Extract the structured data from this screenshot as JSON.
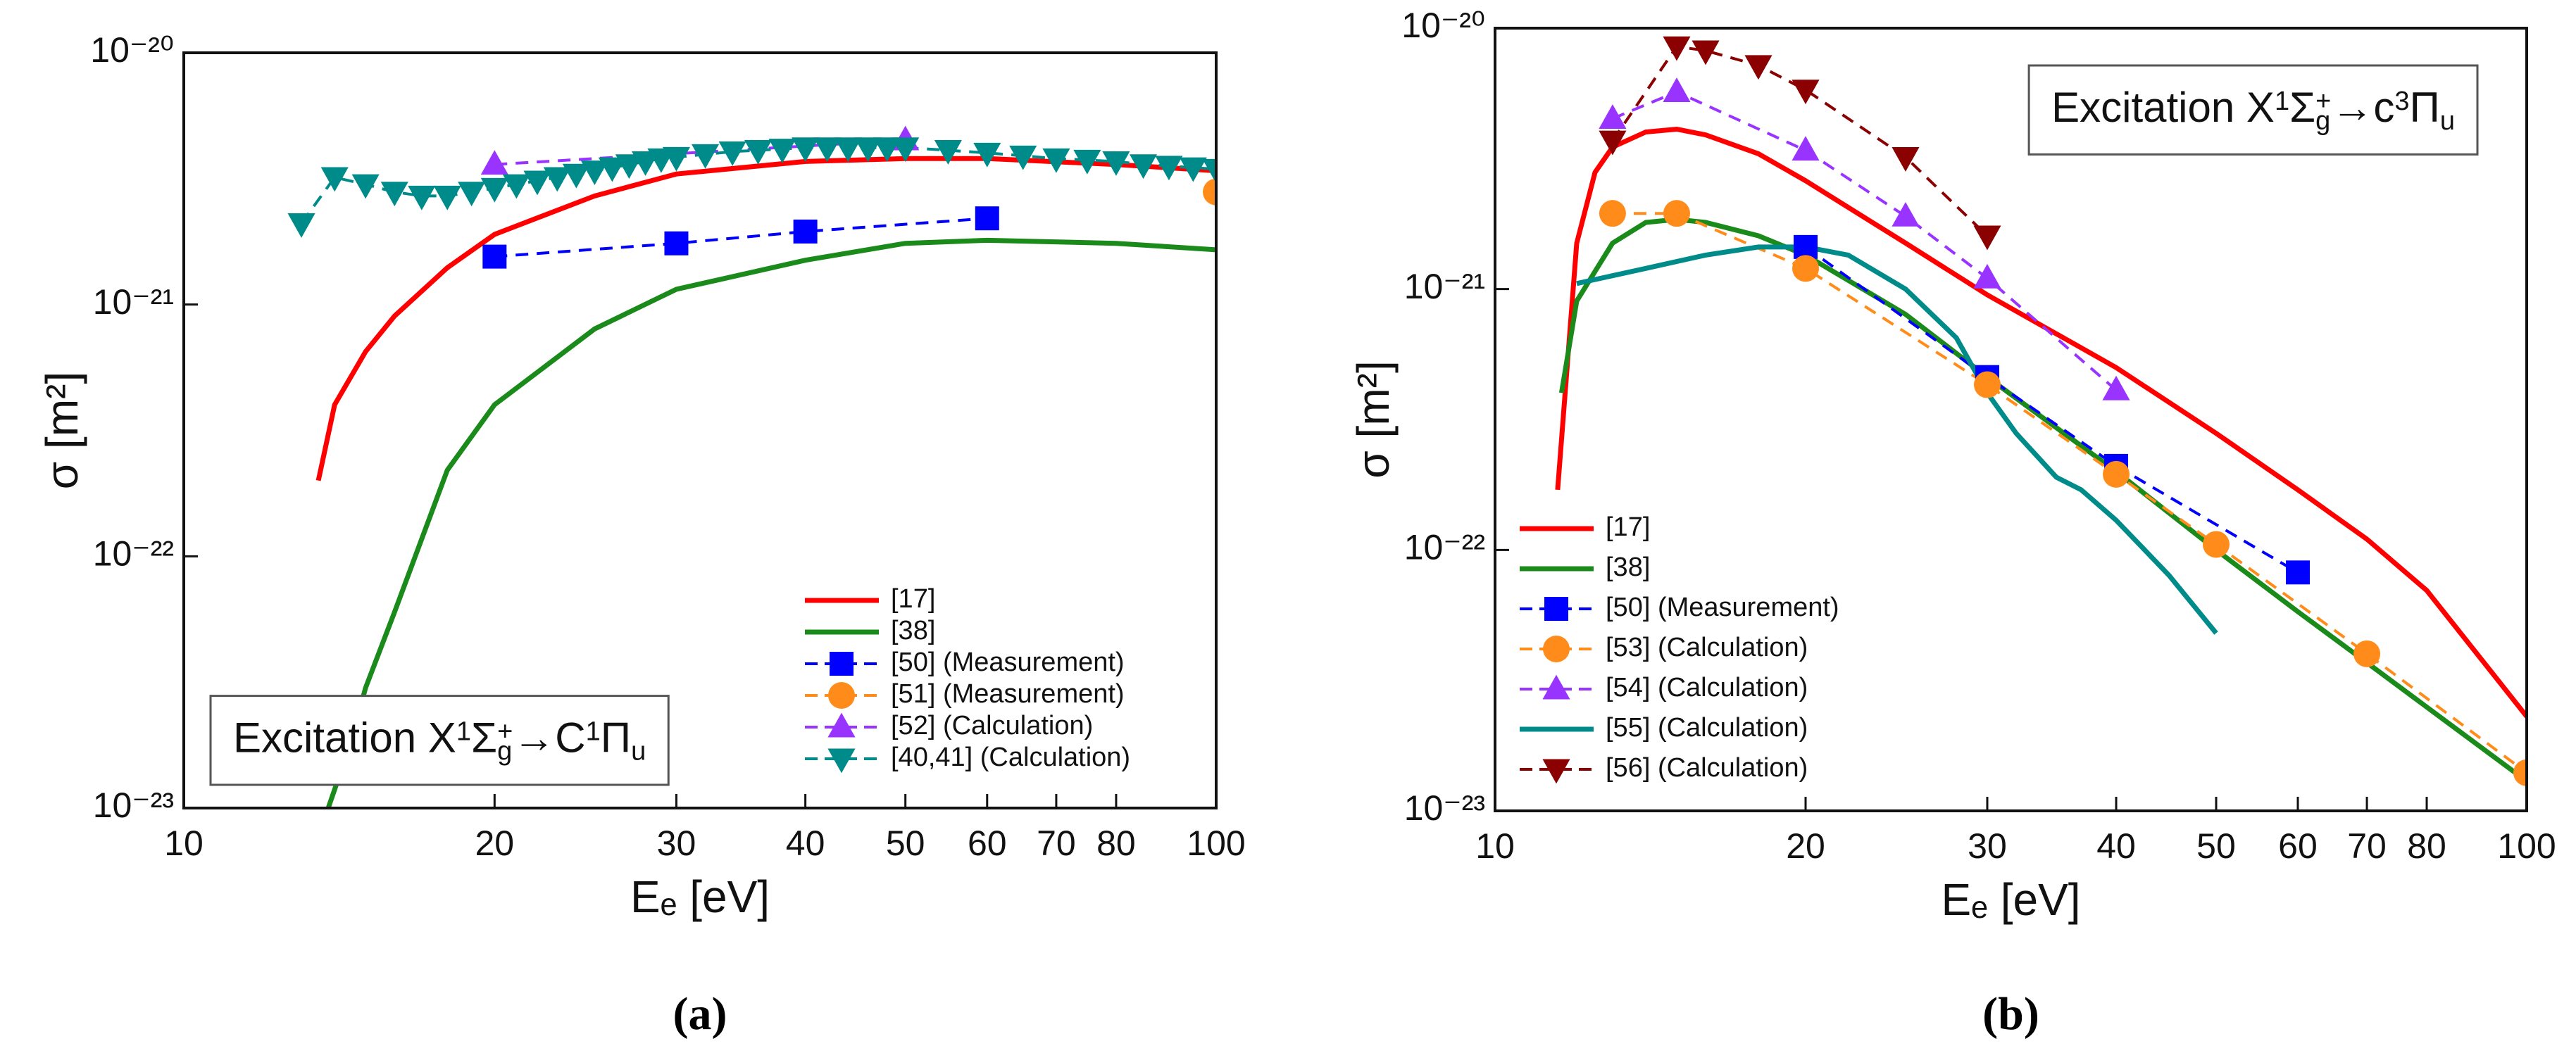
{
  "chart_data": [
    {
      "type": "line",
      "xscale": "log",
      "yscale": "log",
      "xlabel": "Eₑ [eV]",
      "ylabel": "σ [m²]",
      "caption": "(a)",
      "xlim": [
        10,
        100
      ],
      "ylim": [
        1e-23,
        1e-20
      ],
      "xticks": [
        10,
        20,
        30,
        40,
        50,
        60,
        70,
        80,
        100
      ],
      "yticks": [
        {
          "value": 1e-23,
          "label": "10⁻²³"
        },
        {
          "value": 1e-22,
          "label": "10⁻²²"
        },
        {
          "value": 1e-21,
          "label": "10⁻²¹"
        },
        {
          "value": 1e-20,
          "label": "10⁻²⁰"
        }
      ],
      "legend_loc": "lower right",
      "annotation_loc": "lower left",
      "annotation": [
        {
          "text": "Excitation X"
        },
        {
          "text": "1",
          "script": "sup"
        },
        {
          "text": "Σ"
        },
        {
          "text": "g",
          "script": "sub"
        },
        {
          "text": "+",
          "script": "sup"
        },
        {
          "text": "→C"
        },
        {
          "text": "1",
          "script": "sup"
        },
        {
          "text": "Π"
        },
        {
          "text": "u",
          "script": "sub"
        }
      ],
      "series": [
        {
          "name": "[17]",
          "color": "#ff0000",
          "linestyle": "solid",
          "marker": "none",
          "x": [
            13.5,
            14,
            15,
            16,
            18,
            20,
            25,
            30,
            40,
            50,
            60,
            80,
            100
          ],
          "values": [
            2e-22,
            4e-22,
            6.5e-22,
            9e-22,
            1.4e-21,
            1.9e-21,
            2.7e-21,
            3.3e-21,
            3.7e-21,
            3.8e-21,
            3.8e-21,
            3.6e-21,
            3.4e-21
          ]
        },
        {
          "name": "[38]",
          "color": "#1a8a1a",
          "linestyle": "solid",
          "marker": "none",
          "x": [
            13.8,
            14.5,
            15,
            16,
            18,
            20,
            25,
            30,
            40,
            50,
            60,
            80,
            100
          ],
          "values": [
            1e-23,
            1.8e-23,
            3e-23,
            6e-23,
            2.2e-22,
            4e-22,
            8e-22,
            1.15e-21,
            1.5e-21,
            1.75e-21,
            1.8e-21,
            1.75e-21,
            1.65e-21
          ]
        },
        {
          "name": "[50] (Measurement)",
          "color": "#0000ff",
          "linestyle": "dashed",
          "marker": "square",
          "x": [
            20,
            30,
            40,
            60
          ],
          "values": [
            1.55e-21,
            1.75e-21,
            1.95e-21,
            2.2e-21
          ]
        },
        {
          "name": "[51] (Measurement)",
          "color": "#ff8c1a",
          "linestyle": "dashed",
          "marker": "circle",
          "x": [
            100
          ],
          "values": [
            2.8e-21
          ]
        },
        {
          "name": "[52] (Calculation)",
          "color": "#9933ff",
          "linestyle": "dashed",
          "marker": "triangle",
          "x": [
            20,
            50
          ],
          "values": [
            3.6e-21,
            4.5e-21
          ]
        },
        {
          "name": "[40,41] (Calculation)",
          "color": "#008b8b",
          "linestyle": "dashed",
          "marker": "triangle-down",
          "x": [
            13,
            14,
            15,
            16,
            17,
            18,
            19,
            20,
            21,
            22,
            23,
            24,
            25,
            26,
            27,
            28,
            29,
            30,
            32,
            34,
            36,
            38,
            40,
            42,
            44,
            46,
            48,
            50,
            55,
            60,
            65,
            70,
            75,
            80,
            85,
            90,
            95,
            100
          ],
          "values": [
            2.1e-21,
            3.2e-21,
            3e-21,
            2.8e-21,
            2.7e-21,
            2.7e-21,
            2.8e-21,
            2.9e-21,
            3e-21,
            3.1e-21,
            3.2e-21,
            3.3e-21,
            3.4e-21,
            3.5e-21,
            3.6e-21,
            3.7e-21,
            3.8e-21,
            3.85e-21,
            3.95e-21,
            4.05e-21,
            4.1e-21,
            4.15e-21,
            4.2e-21,
            4.2e-21,
            4.2e-21,
            4.2e-21,
            4.2e-21,
            4.2e-21,
            4.1e-21,
            4e-21,
            3.9e-21,
            3.8e-21,
            3.75e-21,
            3.7e-21,
            3.6e-21,
            3.55e-21,
            3.5e-21,
            3.45e-21
          ]
        }
      ]
    },
    {
      "type": "line",
      "xscale": "log",
      "yscale": "log",
      "xlabel": "Eₑ [eV]",
      "ylabel": "σ [m²]",
      "caption": "(b)",
      "xlim": [
        10,
        100
      ],
      "ylim": [
        1e-23,
        1e-20
      ],
      "xticks": [
        10,
        20,
        30,
        40,
        50,
        60,
        70,
        80,
        100
      ],
      "yticks": [
        {
          "value": 1e-23,
          "label": "10⁻²³"
        },
        {
          "value": 1e-22,
          "label": "10⁻²²"
        },
        {
          "value": 1e-21,
          "label": "10⁻²¹"
        },
        {
          "value": 1e-20,
          "label": "10⁻²⁰"
        }
      ],
      "legend_loc": "lower left",
      "annotation_loc": "upper right",
      "annotation": [
        {
          "text": "Excitation X"
        },
        {
          "text": "1",
          "script": "sup"
        },
        {
          "text": "Σ"
        },
        {
          "text": "g",
          "script": "sub"
        },
        {
          "text": "+",
          "script": "sup"
        },
        {
          "text": "→c"
        },
        {
          "text": "3",
          "script": "sup"
        },
        {
          "text": "Π"
        },
        {
          "text": "u",
          "script": "sub"
        }
      ],
      "series": [
        {
          "name": "[17]",
          "color": "#ff0000",
          "linestyle": "solid",
          "marker": "none",
          "x": [
            11.5,
            12,
            12.5,
            13,
            14,
            15,
            16,
            18,
            20,
            25,
            30,
            40,
            50,
            60,
            70,
            80,
            100
          ],
          "values": [
            1.7e-22,
            1.5e-21,
            2.8e-21,
            3.5e-21,
            4e-21,
            4.1e-21,
            3.9e-21,
            3.3e-21,
            2.6e-21,
            1.5e-21,
            9.5e-22,
            5e-22,
            2.8e-22,
            1.7e-22,
            1.1e-22,
            7e-23,
            2.3e-23
          ]
        },
        {
          "name": "[38]",
          "color": "#1a8a1a",
          "linestyle": "solid",
          "marker": "none",
          "x": [
            11.6,
            12,
            13,
            14,
            15,
            16,
            18,
            20,
            25,
            30,
            40,
            50,
            60,
            70,
            80,
            100
          ],
          "values": [
            4e-22,
            9e-22,
            1.5e-21,
            1.8e-21,
            1.85e-21,
            1.8e-21,
            1.6e-21,
            1.35e-21,
            8e-22,
            4.6e-22,
            2e-22,
            1e-22,
            5.8e-23,
            3.7e-23,
            2.5e-23,
            1.3e-23
          ]
        },
        {
          "name": "[50] (Measurement)",
          "color": "#0000ff",
          "linestyle": "dashed",
          "marker": "square",
          "x": [
            20,
            30,
            40,
            60
          ],
          "values": [
            1.45e-21,
            4.6e-22,
            2.1e-22,
            8.2e-23
          ]
        },
        {
          "name": "[53] (Calculation)",
          "color": "#ff8c1a",
          "linestyle": "dashed",
          "marker": "circle",
          "x": [
            13,
            15,
            20,
            30,
            40,
            50,
            70,
            100
          ],
          "values": [
            1.95e-21,
            1.95e-21,
            1.2e-21,
            4.3e-22,
            1.95e-22,
            1.05e-22,
            4e-23,
            1.4e-23
          ]
        },
        {
          "name": "[54] (Calculation)",
          "color": "#9933ff",
          "linestyle": "dashed",
          "marker": "triangle",
          "x": [
            13,
            15,
            20,
            25,
            30,
            40
          ],
          "values": [
            4.5e-21,
            5.7e-21,
            3.4e-21,
            1.9e-21,
            1.1e-21,
            4.1e-22
          ]
        },
        {
          "name": "[55] (Calculation)",
          "color": "#008b8b",
          "linestyle": "solid",
          "marker": "none",
          "x": [
            12,
            14,
            16,
            18,
            20,
            22,
            25,
            28,
            30,
            32,
            35,
            37,
            40,
            45,
            50
          ],
          "values": [
            1.05e-21,
            1.2e-21,
            1.35e-21,
            1.45e-21,
            1.45e-21,
            1.35e-21,
            1e-21,
            6.5e-22,
            4e-22,
            2.8e-22,
            1.9e-22,
            1.7e-22,
            1.3e-22,
            8e-23,
            4.8e-23
          ]
        },
        {
          "name": "[56] (Calculation)",
          "color": "#8b0000",
          "linestyle": "dashed",
          "marker": "triangle-down",
          "x": [
            13,
            15,
            16,
            18,
            20,
            25,
            30
          ],
          "values": [
            3.7e-21,
            8.5e-21,
            8.2e-21,
            7.2e-21,
            5.8e-21,
            3.2e-21,
            1.6e-21
          ]
        }
      ]
    }
  ]
}
